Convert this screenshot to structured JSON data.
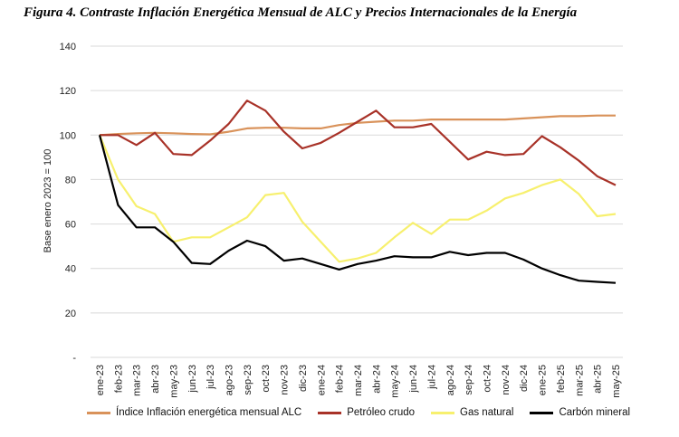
{
  "figure_title": "Figura 4. Contraste Inflación Energética Mensual de ALC y Precios Internacionales de la Energía",
  "chart_data": {
    "type": "line",
    "ylabel": "Base enero 2023 = 100",
    "ylim": [
      0,
      140
    ],
    "yticks": [
      0,
      20,
      40,
      60,
      80,
      100,
      120,
      140
    ],
    "ytick_labels": [
      "-",
      "20",
      "40",
      "60",
      "80",
      "100",
      "120",
      "140"
    ],
    "grid": true,
    "legend_position": "bottom",
    "categories": [
      "ene-23",
      "feb-23",
      "mar-23",
      "abr-23",
      "may-23",
      "jun-23",
      "jul-23",
      "ago-23",
      "sep-23",
      "oct-23",
      "nov-23",
      "dic-23",
      "ene-24",
      "feb-24",
      "mar-24",
      "abr-24",
      "may-24",
      "jun-24",
      "jul-24",
      "ago-24",
      "sep-24",
      "oct-24",
      "nov-24",
      "dic-24",
      "ene-25",
      "feb-25",
      "mar-25",
      "abr-25",
      "may-25"
    ],
    "series": [
      {
        "name": "Índice Inflación energética mensual ALC",
        "color": "#d9925a",
        "values": [
          100,
          100.5,
          100.8,
          101,
          100.8,
          100.5,
          100.3,
          101.5,
          103,
          103.3,
          103.3,
          103,
          103,
          104.5,
          105.5,
          106,
          106.5,
          106.5,
          107,
          107,
          107,
          107,
          107,
          107.5,
          108,
          108.5,
          108.5,
          108.8,
          108.8
        ]
      },
      {
        "name": "Petróleo crudo",
        "color": "#a83228",
        "values": [
          100,
          100,
          95.5,
          101,
          91.5,
          91,
          97.5,
          105,
          115.5,
          111,
          101.5,
          94,
          96.5,
          101,
          106,
          111,
          103.5,
          103.5,
          105,
          97,
          89,
          92.5,
          91,
          91.5,
          99.5,
          94.5,
          88.5,
          81.5,
          77.5
        ]
      },
      {
        "name": "Gas natural",
        "color": "#f7f06e",
        "values": [
          100,
          80,
          68,
          64.5,
          52,
          54,
          54,
          58.5,
          63,
          73,
          74,
          61,
          52,
          43,
          44.5,
          47,
          54,
          60.5,
          55.5,
          62,
          62,
          66,
          71.5,
          74,
          77.5,
          80,
          73.5,
          63.5,
          64.5
        ]
      },
      {
        "name": "Carbón mineral",
        "color": "#000000",
        "values": [
          100,
          68.5,
          58.5,
          58.5,
          52,
          42.5,
          42,
          48,
          52.5,
          50,
          43.5,
          44.5,
          42,
          39.5,
          42,
          43.5,
          45.5,
          45,
          45,
          47.5,
          46,
          47,
          47,
          44,
          40,
          37,
          34.5,
          34,
          33.5
        ]
      }
    ]
  }
}
